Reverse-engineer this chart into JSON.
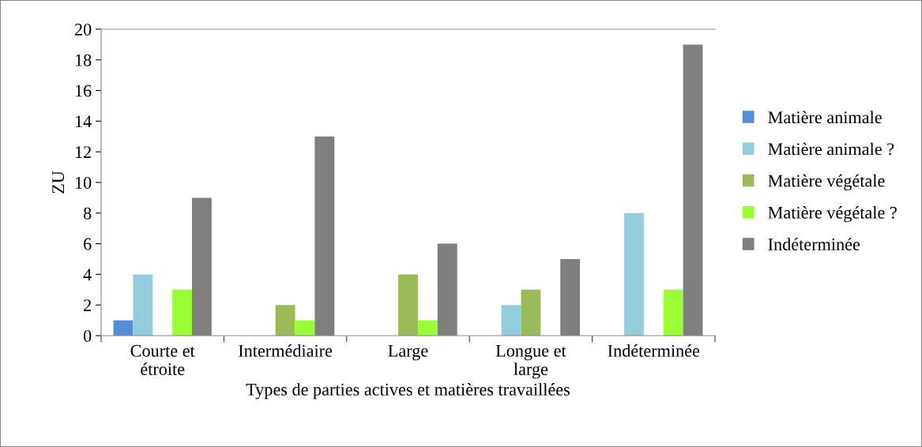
{
  "chart_data": {
    "type": "bar",
    "xlabel": "Types de parties actives et matières travaillées",
    "ylabel": "ZU",
    "categories": [
      "Courte et\nétroite",
      "Intermédiaire",
      "Large",
      "Longue et\nlarge",
      "Indéterminée"
    ],
    "series": [
      {
        "name": "Matière animale",
        "color": "#558ed5",
        "values": [
          1,
          0,
          0,
          0,
          0
        ]
      },
      {
        "name": "Matière animale ?",
        "color": "#93cddd",
        "values": [
          4,
          0,
          0,
          2,
          8
        ]
      },
      {
        "name": "Matière végétale",
        "color": "#9bbb59",
        "values": [
          0,
          2,
          4,
          3,
          0
        ]
      },
      {
        "name": "Matière végétale ?",
        "color": "#99ff33",
        "values": [
          3,
          1,
          1,
          0,
          3
        ]
      },
      {
        "name": "Indéterminée",
        "color": "#7f7f7f",
        "values": [
          9,
          13,
          6,
          5,
          19
        ]
      }
    ],
    "ylim": [
      0,
      20
    ],
    "yticks": [
      0,
      2,
      4,
      6,
      8,
      10,
      12,
      14,
      16,
      18,
      20
    ],
    "grid": false,
    "legend": "right"
  }
}
